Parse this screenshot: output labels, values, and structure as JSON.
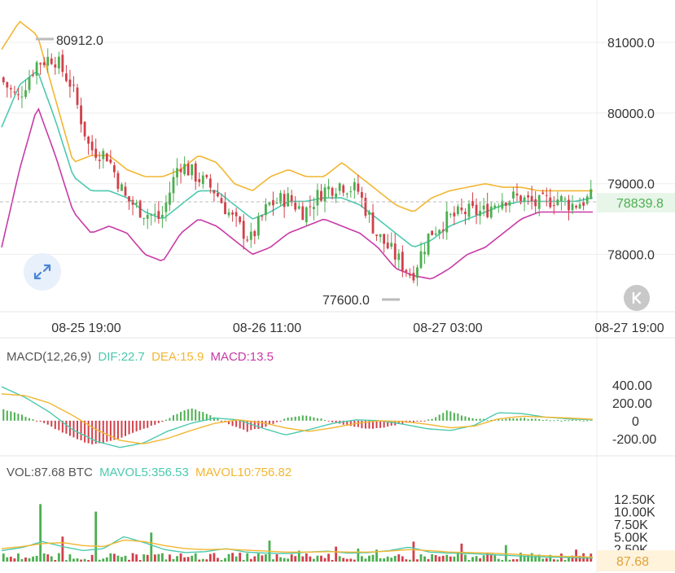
{
  "colors": {
    "up": "#4caf50",
    "down": "#d2404a",
    "boll_upper": "#f2b632",
    "boll_mid": "#4cc9ae",
    "boll_lower": "#c83aa6",
    "macd_dif": "#4cc9ae",
    "macd_dea": "#f2b632",
    "macd_label": "#c83aa6",
    "text": "#555555",
    "grid": "#eeeeee",
    "last_price_bg": "#e8f5e9",
    "last_vol_bg": "#fff3dc"
  },
  "icons": {
    "expand": "expand-arrows-icon",
    "back": "chevron-left-bar-icon"
  },
  "chart_data": [
    {
      "type": "candlestick",
      "name": "price",
      "ylim": [
        77200,
        81600
      ],
      "y_ticks": [
        {
          "value": 81000,
          "label": "81000.0"
        },
        {
          "value": 80000,
          "label": "80000.0"
        },
        {
          "value": 79000,
          "label": "79000.0"
        },
        {
          "value": 78000,
          "label": "78000.0"
        }
      ],
      "x_ticks": [
        "08-25 19:00",
        "08-26 11:00",
        "08-27 03:00",
        "08-27 19:00"
      ],
      "last_price": {
        "value": 78839.8,
        "label": "78839.8"
      },
      "high_annotation": {
        "value": 80912.0,
        "label": "80912.0"
      },
      "low_annotation": {
        "value": 77600.0,
        "label": "77600.0"
      },
      "close_anchors": [
        80500,
        80200,
        80700,
        80800,
        80400,
        79500,
        79400,
        78800,
        78600,
        78500,
        79300,
        79100,
        78900,
        78500,
        78200,
        78700,
        78800,
        78600,
        78900,
        79000,
        78900,
        78300,
        78000,
        77700,
        78300,
        78500,
        78600,
        78600,
        78800,
        78800,
        78700,
        78800,
        78700,
        78800
      ],
      "boll_upper": [
        80900,
        81300,
        81100,
        80200,
        79300,
        79400,
        79400,
        79200,
        79100,
        79100,
        79200,
        79400,
        79300,
        79000,
        78900,
        79100,
        79200,
        79100,
        79100,
        79300,
        79100,
        78900,
        78700,
        78600,
        78800,
        78900,
        78950,
        79000,
        78950,
        78950,
        78900,
        78900,
        78900,
        78900
      ],
      "boll_mid": [
        79800,
        80400,
        80600,
        79900,
        79100,
        78900,
        78900,
        78800,
        78600,
        78500,
        78700,
        78900,
        78900,
        78700,
        78500,
        78600,
        78750,
        78750,
        78800,
        78800,
        78700,
        78500,
        78300,
        78100,
        78200,
        78400,
        78500,
        78600,
        78700,
        78750,
        78750,
        78750,
        78750,
        78800
      ],
      "boll_lower": [
        78100,
        79200,
        80100,
        79400,
        78600,
        78300,
        78400,
        78300,
        78000,
        77900,
        78300,
        78500,
        78400,
        78200,
        78000,
        78100,
        78300,
        78400,
        78500,
        78400,
        78300,
        78100,
        77800,
        77700,
        77650,
        77800,
        78000,
        78100,
        78300,
        78500,
        78600,
        78600,
        78600,
        78600
      ]
    },
    {
      "type": "bar",
      "name": "macd",
      "header": {
        "title": "MACD(12,26,9)",
        "dif_label": "DIF:22.7",
        "dea_label": "DEA:15.9",
        "macd_label": "MACD:13.5"
      },
      "ylim": [
        -320,
        500
      ],
      "y_ticks": [
        {
          "value": 400,
          "label": "400.00"
        },
        {
          "value": 200,
          "label": "200.00"
        },
        {
          "value": 0,
          "label": "0"
        },
        {
          "value": -200,
          "label": "-200.00"
        }
      ],
      "hist_anchors": [
        130,
        80,
        20,
        -40,
        -120,
        -200,
        -260,
        -250,
        -200,
        -140,
        -80,
        -20,
        70,
        140,
        90,
        20,
        -60,
        -120,
        -80,
        -20,
        40,
        60,
        30,
        -20,
        -50,
        -80,
        -90,
        -60,
        -30,
        -10,
        20,
        120,
        60,
        20,
        10,
        20,
        30,
        20,
        10,
        5,
        5,
        10
      ],
      "dif_anchors": [
        380,
        260,
        100,
        -100,
        -230,
        -300,
        -250,
        -120,
        -30,
        30,
        10,
        -80,
        -160,
        -100,
        -30,
        10,
        0,
        -40,
        -90,
        -110,
        -50,
        90,
        80,
        40,
        20,
        10
      ],
      "dea_anchors": [
        300,
        280,
        200,
        60,
        -100,
        -220,
        -260,
        -200,
        -110,
        -30,
        10,
        -20,
        -80,
        -120,
        -80,
        -30,
        0,
        -10,
        -40,
        -80,
        -60,
        20,
        50,
        40,
        30,
        15
      ]
    },
    {
      "type": "bar",
      "name": "volume",
      "header": {
        "vol_label": "VOL:87.68 BTC",
        "mavol5_label": "MAVOL5:356.53",
        "mavol10_label": "MAVOL10:756.82"
      },
      "ylim": [
        0,
        14000
      ],
      "y_ticks": [
        {
          "value": 12500,
          "label": "12.50K"
        },
        {
          "value": 10000,
          "label": "10.00K"
        },
        {
          "value": 7500,
          "label": "7.50K"
        },
        {
          "value": 5000,
          "label": "5.00K"
        },
        {
          "value": 2500,
          "label": "2.50K"
        }
      ],
      "last_volume": {
        "value": 87.68,
        "label": "87.68"
      },
      "spikes": [
        {
          "i": 10,
          "v": 11500
        },
        {
          "i": 25,
          "v": 10000
        },
        {
          "i": 40,
          "v": 5800
        },
        {
          "i": 16,
          "v": 5000
        },
        {
          "i": 72,
          "v": 4200
        },
        {
          "i": 111,
          "v": 4000
        },
        {
          "i": 124,
          "v": 3600
        },
        {
          "i": 136,
          "v": 3300
        },
        {
          "i": 90,
          "v": 3000
        },
        {
          "i": 96,
          "v": 2600
        },
        {
          "i": 155,
          "v": 2400
        },
        {
          "i": 101,
          "v": 2400
        },
        {
          "i": 80,
          "v": 2200
        }
      ],
      "mavol5_anchors": [
        2200,
        2800,
        4000,
        3000,
        2200,
        2600,
        5000,
        3800,
        2400,
        1800,
        2000,
        2600,
        1900,
        1700,
        1600,
        1900,
        2100,
        1700,
        1800,
        2200,
        2900,
        1900,
        1700,
        1600,
        1400,
        1200,
        1000,
        900,
        800,
        700
      ],
      "mavol10_anchors": [
        2600,
        3000,
        3600,
        3800,
        3200,
        3000,
        4300,
        4000,
        3200,
        2600,
        2400,
        2500,
        2300,
        2100,
        1900,
        1900,
        2000,
        1900,
        1900,
        2100,
        2400,
        2200,
        1900,
        1800,
        1700,
        1500,
        1300,
        1100,
        1000,
        900
      ]
    }
  ]
}
